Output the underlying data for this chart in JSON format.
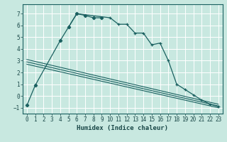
{
  "title": "",
  "xlabel": "Humidex (Indice chaleur)",
  "xlim": [
    -0.5,
    23.5
  ],
  "ylim": [
    -1.5,
    7.8
  ],
  "xticks": [
    0,
    1,
    2,
    3,
    4,
    5,
    6,
    7,
    8,
    9,
    10,
    11,
    12,
    13,
    14,
    15,
    16,
    17,
    18,
    19,
    20,
    21,
    22,
    23
  ],
  "yticks": [
    -1,
    0,
    1,
    2,
    3,
    4,
    5,
    6,
    7
  ],
  "bg_color": "#c8e8e0",
  "grid_color": "#ffffff",
  "line_color": "#1a6060",
  "series1_x": [
    0,
    1,
    4,
    5,
    6,
    7,
    8,
    9
  ],
  "series1_y": [
    -0.8,
    0.9,
    4.7,
    5.85,
    7.0,
    6.85,
    6.65,
    6.65
  ],
  "series2_x": [
    5,
    6,
    10,
    11,
    12,
    13,
    14,
    15,
    16,
    17,
    18,
    19,
    20,
    21,
    22,
    23
  ],
  "series2_y": [
    5.85,
    7.0,
    6.65,
    6.1,
    6.1,
    5.35,
    5.35,
    4.35,
    4.5,
    3.0,
    1.0,
    0.55,
    0.1,
    -0.35,
    -0.7,
    -0.9
  ],
  "straight_lines": [
    {
      "x": [
        0,
        23
      ],
      "y": [
        3.1,
        -0.7
      ]
    },
    {
      "x": [
        0,
        23
      ],
      "y": [
        2.9,
        -0.85
      ]
    },
    {
      "x": [
        0,
        23
      ],
      "y": [
        2.7,
        -1.0
      ]
    }
  ]
}
